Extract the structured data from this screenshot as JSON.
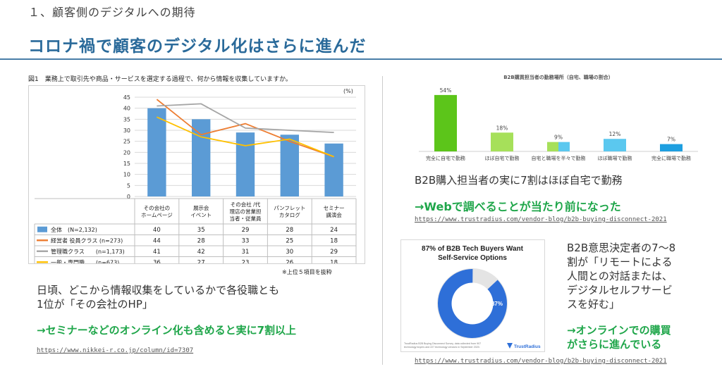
{
  "header": {
    "section_title": "１、顧客側のデジタルへの期待",
    "main_title": "コロナ禍で顧客のデジタル化はさらに進んだ",
    "rule_color": "#4a7ea8"
  },
  "left": {
    "caption": "図1　業務上で取引先や商品・サービスを選定する過程で、何から情報を収集していますか。",
    "footnote": "※上位５項目を抜粋",
    "para_line1": "日頃、どこから情報収集をしているかで各役職とも",
    "para_line2": "1位が「その会社のHP」",
    "highlight": "→セミナーなどのオンライン化も含めると実に7割以上",
    "url": "https://www.nikkei-r.co.jp/column/id=7307"
  },
  "right": {
    "para1": "B2B購入担当者の実に7割はほぼ自宅で勤務",
    "highlight1": "→Webで調べることが当たり前になった",
    "url1": "https://www.trustradius.com/vendor-blog/b2b-buying-disconnect-2021",
    "para2_lines": [
      "B2B意思決定者の7〜8",
      "割が「リモートによる",
      "人間との対話または、",
      "デジタルセルフサービ",
      "スを好む」"
    ],
    "highlight2_lines": [
      "→オンラインでの購買",
      "がさらに進んでいる"
    ],
    "url2": "https://www.trustradius.com/vendor-blog/b2b-buying-disconnect-2021"
  },
  "fig3": {
    "title_line1": "87% of B2B Tech Buyers Want",
    "title_line2": "Self-Service Options",
    "pct_label": "87%",
    "source_line1": "TrustRadius B2B Buying Disconnect Survey, data collected from 907",
    "source_line2": "technology buyers and 227 technology vendors in September 2020.",
    "brand": "TrustRadius",
    "colors": {
      "main": "#2e6fd8",
      "rest": "#ffffff"
    }
  },
  "chart_data": [
    {
      "type": "bar",
      "title": "",
      "unit_label": "(%)",
      "ylim": [
        0,
        45
      ],
      "yticks": [
        0,
        5,
        10,
        15,
        20,
        25,
        30,
        35,
        40,
        45
      ],
      "grid": true,
      "legend_placement": "table-below",
      "categories": [
        "その会社の\nホームページ",
        "展示会\nイベント",
        "その会社 /代\n理店の営業担\n当者・従業員",
        "パンフレット\nカタログ",
        "セミナー\n講演会"
      ],
      "series": [
        {
          "name": "全体　(N=2,132)",
          "kind": "bar",
          "color": "#5b9bd5",
          "values": [
            40,
            35,
            29,
            28,
            24
          ]
        },
        {
          "name": "経営者 役員クラス (n=273)",
          "kind": "line",
          "color": "#ed7d31",
          "values": [
            44,
            28,
            33,
            25,
            18
          ]
        },
        {
          "name": "管理職クラス　　(n=1,173)",
          "kind": "line",
          "color": "#a5a5a5",
          "values": [
            41,
            42,
            31,
            30,
            29
          ]
        },
        {
          "name": "一般・専門職　　(n=673)",
          "kind": "line",
          "color": "#ffc000",
          "values": [
            36,
            27,
            23,
            26,
            18
          ]
        }
      ]
    },
    {
      "type": "bar",
      "title": "B2B購買担当者の勤務場所（自宅、職場の割合）",
      "ylim": [
        0,
        60
      ],
      "grid": false,
      "categories": [
        "完全に自宅で勤務",
        "ほぼ自宅で勤務",
        "自宅と職場を半々で勤務",
        "ほぼ職場で勤務",
        "完全に職場で勤務"
      ],
      "values": [
        54,
        18,
        9,
        12,
        7
      ],
      "value_labels": [
        "54%",
        "18%",
        "9%",
        "12%",
        "7%"
      ],
      "colors": [
        "#5cc51a",
        "#a6e05a",
        "#a6e05a|#5bc8ef",
        "#5bc8ef",
        "#1e9fe0"
      ]
    },
    {
      "type": "pie",
      "values": [
        87,
        13
      ],
      "labels": [
        "87%",
        ""
      ]
    }
  ]
}
